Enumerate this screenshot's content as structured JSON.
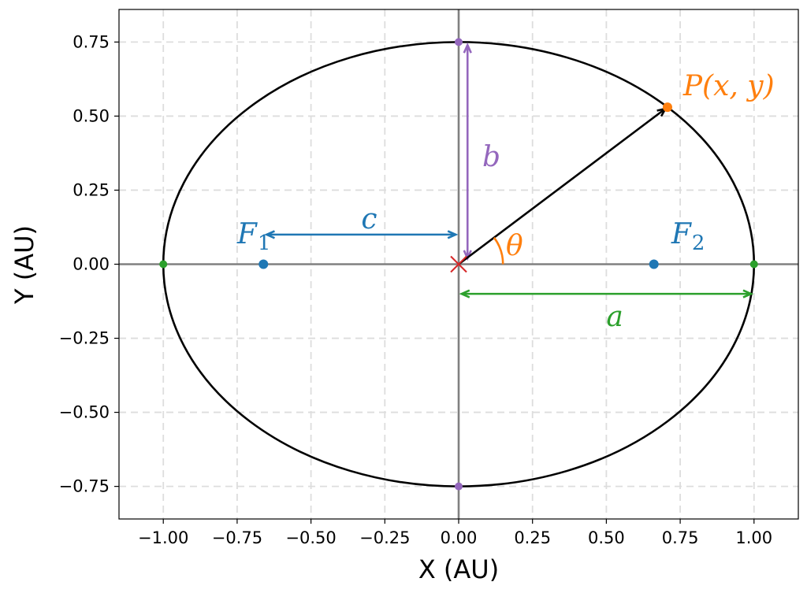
{
  "chart_data": {
    "type": "scatter",
    "xlabel": "X (AU)",
    "ylabel": "Y (AU)",
    "xlim": [
      -1.15,
      1.15
    ],
    "ylim": [
      -0.86,
      0.86
    ],
    "x_ticks": [
      -1.0,
      -0.75,
      -0.5,
      -0.25,
      0.0,
      0.25,
      0.5,
      0.75,
      1.0
    ],
    "x_tick_labels": [
      "−1.00",
      "−0.75",
      "−0.50",
      "−0.25",
      "0.00",
      "0.25",
      "0.50",
      "0.75",
      "1.00"
    ],
    "y_ticks": [
      0.75,
      0.5,
      0.25,
      0.0,
      -0.25,
      -0.5,
      -0.75
    ],
    "y_tick_labels": [
      "0.75",
      "0.50",
      "0.25",
      "0.00",
      "−0.25",
      "−0.50",
      "−0.75"
    ],
    "grid": true,
    "ellipse": {
      "a": 1.0,
      "b": 0.75,
      "color": "#000000"
    },
    "points": {
      "foci": [
        [
          -0.661,
          0.0
        ],
        [
          0.661,
          0.0
        ]
      ],
      "vertices_major": [
        [
          -1.0,
          0.0
        ],
        [
          1.0,
          0.0
        ]
      ],
      "vertices_minor": [
        [
          0.0,
          0.75
        ],
        [
          0.0,
          -0.75
        ]
      ],
      "center": [
        0.0,
        0.0
      ],
      "P": [
        0.707,
        0.53
      ]
    },
    "colors": {
      "blue": "#1f77b4",
      "orange": "#ff7f0e",
      "green": "#2ca02c",
      "purple": "#9467bd",
      "red": "#d62728",
      "axis": "#808080",
      "grid": "#dddddd"
    },
    "annotations": {
      "F1": {
        "main": "F",
        "sub": "1",
        "x": -0.75,
        "y": 0.1
      },
      "F2": {
        "main": "F",
        "sub": "2",
        "x": 0.72,
        "y": 0.1
      },
      "c": {
        "text": "c",
        "x": -0.33,
        "y": 0.15
      },
      "b": {
        "text": "b",
        "x": 0.08,
        "y": 0.36
      },
      "theta": {
        "text": "θ",
        "x": 0.16,
        "y": 0.06
      },
      "a": {
        "text": "a",
        "x": 0.5,
        "y": -0.18
      },
      "P": {
        "text": "P(x, y)",
        "x": 0.76,
        "y": 0.6
      }
    },
    "arrows": {
      "c": {
        "from": [
          -0.65,
          0.1
        ],
        "to": [
          -0.01,
          0.1
        ]
      },
      "b": {
        "from": [
          0.03,
          0.02
        ],
        "to": [
          0.03,
          0.74
        ]
      },
      "a": {
        "from": [
          0.01,
          -0.1
        ],
        "to": [
          0.99,
          -0.1
        ]
      },
      "r": {
        "from": [
          0.0,
          0.0
        ],
        "to": [
          0.7,
          0.525
        ]
      }
    },
    "theta_arc_radius": 0.15
  }
}
